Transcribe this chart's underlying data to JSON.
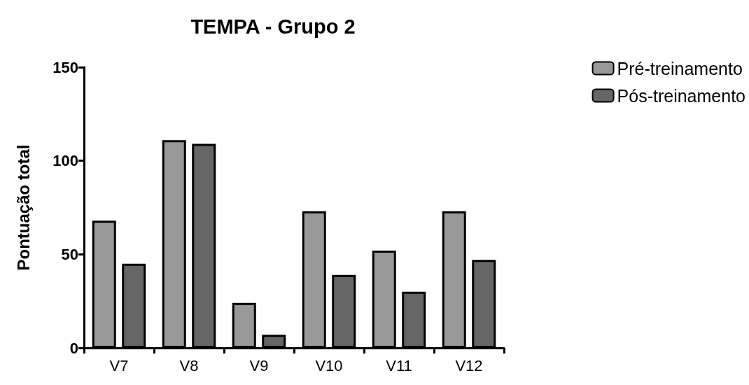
{
  "chart_data": {
    "type": "bar",
    "title": "TEMPA - Grupo 2",
    "ylabel": "Pontuação total",
    "categories": [
      "V7",
      "V8",
      "V9",
      "V10",
      "V11",
      "V12"
    ],
    "series": [
      {
        "name": "Pré-treinamento",
        "color": "#999999",
        "values": [
          68,
          111,
          24,
          73,
          52,
          73
        ]
      },
      {
        "name": "Pós-treinamento",
        "color": "#666666",
        "values": [
          45,
          109,
          7,
          39,
          30,
          47
        ]
      }
    ],
    "ylim": [
      0,
      150
    ],
    "yticks": [
      0,
      50,
      100,
      150
    ],
    "grid": false,
    "legend": "top right"
  }
}
